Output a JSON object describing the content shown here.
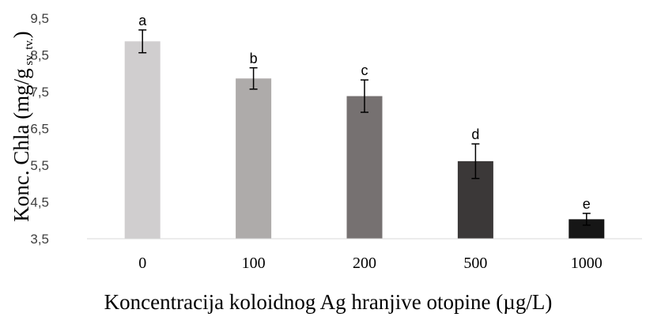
{
  "chart_data": {
    "type": "bar",
    "categories": [
      "0",
      "100",
      "200",
      "500",
      "1000"
    ],
    "values": [
      8.87,
      7.86,
      7.38,
      5.61,
      4.03
    ],
    "errors": [
      0.31,
      0.29,
      0.44,
      0.47,
      0.16
    ],
    "significance": [
      "a",
      "b",
      "c",
      "d",
      "e"
    ],
    "bar_colors": [
      "#d0cecf",
      "#aeabaa",
      "#767171",
      "#3b3838",
      "#161616"
    ],
    "ylim": [
      3.5,
      9.5
    ],
    "yticks": [
      "3,5",
      "4,5",
      "5,5",
      "6,5",
      "7,5",
      "8,5",
      "9,5"
    ],
    "xlabel": "Koncentracija koloidnog Ag hranjive otopine (µg/L)",
    "ylabel": "Konc. Chla (mg/g",
    "ylabel_sub": "sv. tv.",
    "ylabel_end": ")",
    "grid": false
  }
}
